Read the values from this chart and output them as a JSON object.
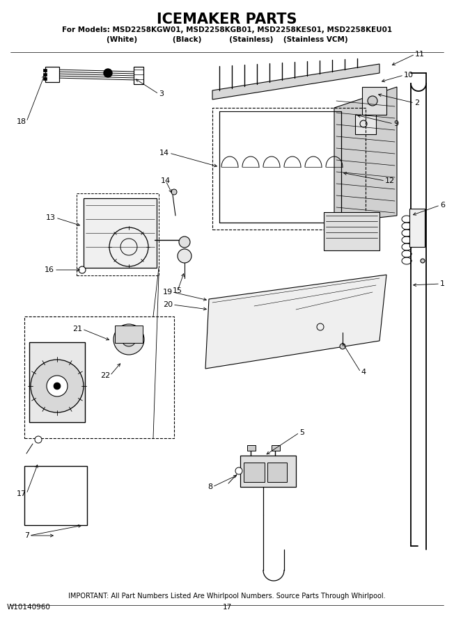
{
  "title": "ICEMAKER PARTS",
  "subtitle_line1": "For Models: MSD2258KGW01, MSD2258KGB01, MSD2258KES01, MSD2258KEU01",
  "subtitle_line2": "(White)              (Black)           (Stainless)    (Stainless VCM)",
  "footer_left": "W10140960",
  "footer_center": "17",
  "footer_note": "IMPORTANT: All Part Numbers Listed Are Whirlpool Numbers. Source Parts Through Whirlpool.",
  "bg_color": "#ffffff",
  "text_color": "#000000"
}
